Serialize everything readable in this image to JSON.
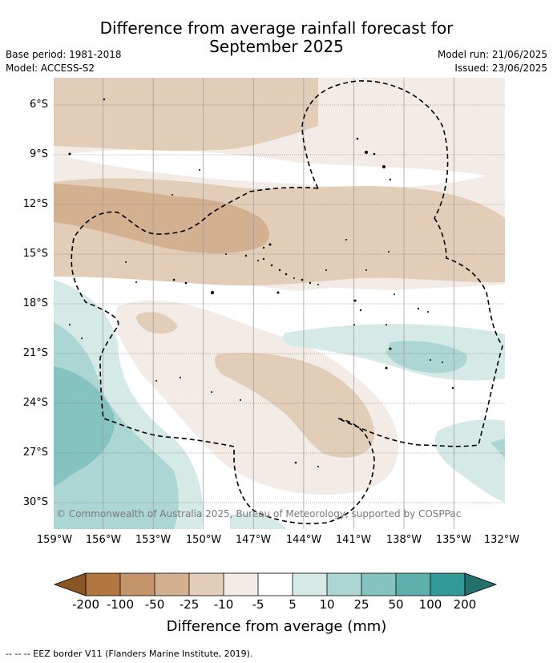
{
  "title_line1": "Difference from average rainfall forecast for",
  "title_line2": "September 2025",
  "base_period": "Base period: 1981-2018",
  "model": "Model: ACCESS-S2",
  "model_run": "Model run: 21/06/2025",
  "issued": "Issued: 23/06/2025",
  "lat_labels": [
    "6°S",
    "9°S",
    "12°S",
    "15°S",
    "18°S",
    "21°S",
    "24°S",
    "27°S",
    "30°S"
  ],
  "lon_labels": [
    "159°W",
    "156°W",
    "153°W",
    "150°W",
    "147°W",
    "144°W",
    "141°W",
    "138°W",
    "135°W",
    "132°W"
  ],
  "credit": "© Commonwealth of Australia 2025, Bureau of Meteorology, supported by COSPPac",
  "colorbar": {
    "title": "Difference from average (mm)",
    "labels": [
      "-200",
      "-100",
      "-50",
      "-25",
      "-10",
      "-5",
      "5",
      "10",
      "25",
      "50",
      "100",
      "200"
    ],
    "colors": {
      "lt_-200": "#8a5424",
      "-200_-100": "#b1773f",
      "-100_-50": "#c4946a",
      "-50_-25": "#d2b090",
      "-25_-10": "#e2cdb9",
      "-10_-5": "#f3ebe5",
      "-5_5": "#ffffff",
      "5_10": "#d5e9e7",
      "10_25": "#acd6d3",
      "25_50": "#84c3bf",
      "50_100": "#5eb0ad",
      "100_200": "#339b97",
      "gt_200": "#23706d"
    }
  },
  "footnote": "--  --  -- EEZ border V11 (Flanders Marine Institute, 2019)."
}
